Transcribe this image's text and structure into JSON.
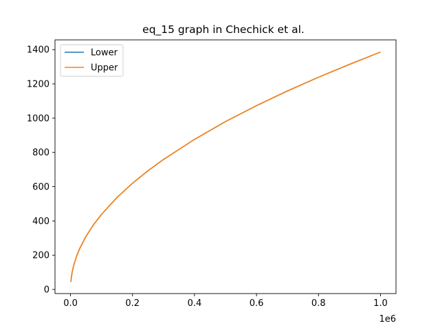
{
  "chart_data": {
    "type": "line",
    "title": "eq_15 graph in Chechick et al.",
    "xlabel": "",
    "ylabel": "",
    "x_offset_label": "1e6",
    "xlim": [
      -50000,
      1050000
    ],
    "ylim": [
      -24,
      1457
    ],
    "xticks": [
      0,
      200000,
      400000,
      600000,
      800000,
      1000000
    ],
    "xtick_labels": [
      "0.0",
      "0.2",
      "0.4",
      "0.6",
      "0.8",
      "1.0"
    ],
    "yticks": [
      0,
      200,
      400,
      600,
      800,
      1000,
      1200,
      1400
    ],
    "ytick_labels": [
      "0",
      "200",
      "400",
      "600",
      "800",
      "1000",
      "1200",
      "1400"
    ],
    "grid": false,
    "legend_position": "upper-left",
    "series": [
      {
        "name": "Lower",
        "color": "#1f77b4",
        "x": [
          1000,
          5000,
          10000,
          20000,
          30000,
          50000,
          75000,
          100000,
          150000,
          200000,
          250000,
          300000,
          400000,
          500000,
          600000,
          700000,
          800000,
          900000,
          1000000
        ],
        "y": [
          44,
          98,
          139,
          196,
          240,
          310,
          380,
          438,
          537,
          620,
          693,
          759,
          876,
          980,
          1073,
          1159,
          1239,
          1314,
          1386
        ]
      },
      {
        "name": "Upper",
        "color": "#ff7f0e",
        "x": [
          1000,
          5000,
          10000,
          20000,
          30000,
          50000,
          75000,
          100000,
          150000,
          200000,
          250000,
          300000,
          400000,
          500000,
          600000,
          700000,
          800000,
          900000,
          1000000
        ],
        "y": [
          44,
          98,
          139,
          196,
          240,
          310,
          380,
          438,
          537,
          620,
          693,
          759,
          876,
          980,
          1073,
          1159,
          1239,
          1314,
          1386
        ]
      }
    ]
  }
}
